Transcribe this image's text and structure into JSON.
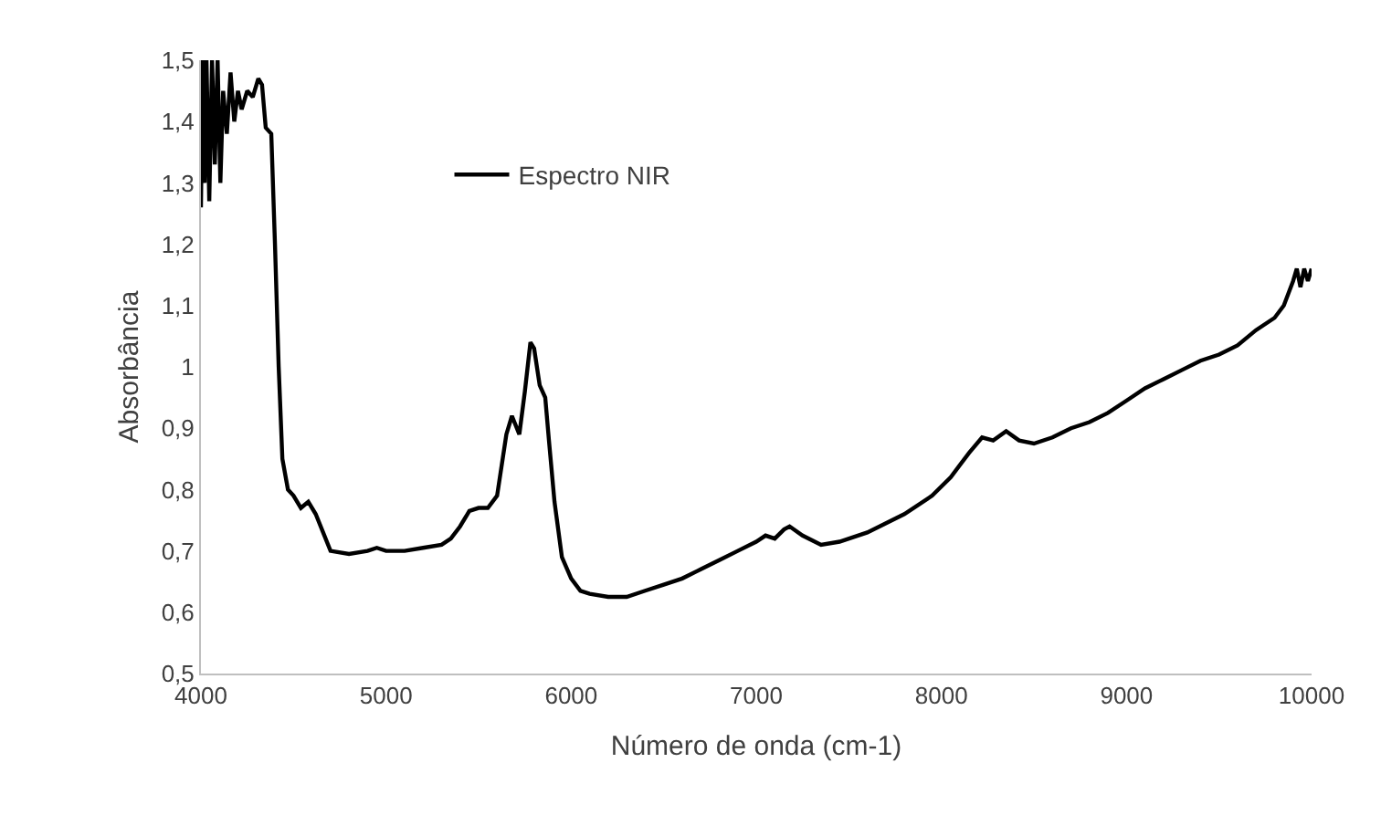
{
  "chart_data": {
    "type": "line",
    "xlabel": "Número de onda (cm-1)",
    "ylabel": "Absorbância",
    "legend": "top left",
    "grid": false,
    "marker": "none",
    "line_style": "solid",
    "xlim": [
      4000,
      10000
    ],
    "xticks": [
      4000,
      5000,
      6000,
      7000,
      8000,
      9000,
      10000
    ],
    "ylim": [
      0.5,
      1.5
    ],
    "yticks": [
      {
        "value": 0.5,
        "label": "0,5"
      },
      {
        "value": 0.6,
        "label": "0,6"
      },
      {
        "value": 0.7,
        "label": "0,7"
      },
      {
        "value": 0.8,
        "label": "0,8"
      },
      {
        "value": 0.9,
        "label": "0,9"
      },
      {
        "value": 1,
        "label": "1"
      },
      {
        "value": 1.1,
        "label": "1,1"
      },
      {
        "value": 1.2,
        "label": "1,2"
      },
      {
        "value": 1.3,
        "label": "1,3"
      },
      {
        "value": 1.4,
        "label": "1,4"
      },
      {
        "value": 1.5,
        "label": "1,5"
      }
    ],
    "series": [
      {
        "name": "Espectro NIR",
        "color": "#000000",
        "x": [
          4000,
          4010,
          4020,
          4030,
          4045,
          4060,
          4075,
          4090,
          4105,
          4120,
          4140,
          4160,
          4180,
          4200,
          4220,
          4250,
          4280,
          4310,
          4330,
          4350,
          4380,
          4400,
          4420,
          4440,
          4470,
          4500,
          4540,
          4580,
          4620,
          4660,
          4700,
          4800,
          4900,
          4950,
          5000,
          5100,
          5200,
          5300,
          5350,
          5400,
          5450,
          5500,
          5550,
          5600,
          5650,
          5680,
          5720,
          5750,
          5780,
          5800,
          5830,
          5860,
          5880,
          5910,
          5950,
          6000,
          6050,
          6100,
          6200,
          6300,
          6400,
          6500,
          6600,
          6700,
          6800,
          6900,
          7000,
          7050,
          7100,
          7150,
          7180,
          7250,
          7350,
          7450,
          7600,
          7800,
          7950,
          8050,
          8150,
          8220,
          8280,
          8350,
          8420,
          8500,
          8600,
          8700,
          8800,
          8900,
          9000,
          9100,
          9200,
          9300,
          9400,
          9500,
          9600,
          9700,
          9800,
          9850,
          9900,
          9920,
          9940,
          9960,
          9980,
          10000
        ],
        "values": [
          1.26,
          1.5,
          1.3,
          1.5,
          1.27,
          1.5,
          1.33,
          1.5,
          1.3,
          1.45,
          1.38,
          1.48,
          1.4,
          1.45,
          1.42,
          1.45,
          1.44,
          1.47,
          1.46,
          1.39,
          1.38,
          1.2,
          1.0,
          0.85,
          0.8,
          0.79,
          0.77,
          0.78,
          0.76,
          0.73,
          0.7,
          0.695,
          0.7,
          0.705,
          0.7,
          0.7,
          0.705,
          0.71,
          0.72,
          0.74,
          0.765,
          0.77,
          0.77,
          0.79,
          0.89,
          0.92,
          0.89,
          0.96,
          1.04,
          1.03,
          0.97,
          0.95,
          0.88,
          0.78,
          0.69,
          0.655,
          0.635,
          0.63,
          0.625,
          0.625,
          0.635,
          0.645,
          0.655,
          0.67,
          0.685,
          0.7,
          0.715,
          0.725,
          0.72,
          0.735,
          0.74,
          0.725,
          0.71,
          0.715,
          0.73,
          0.76,
          0.79,
          0.82,
          0.86,
          0.885,
          0.88,
          0.895,
          0.88,
          0.875,
          0.885,
          0.9,
          0.91,
          0.925,
          0.945,
          0.965,
          0.98,
          0.995,
          1.01,
          1.02,
          1.035,
          1.06,
          1.08,
          1.1,
          1.14,
          1.16,
          1.13,
          1.16,
          1.14,
          1.16
        ]
      }
    ]
  }
}
